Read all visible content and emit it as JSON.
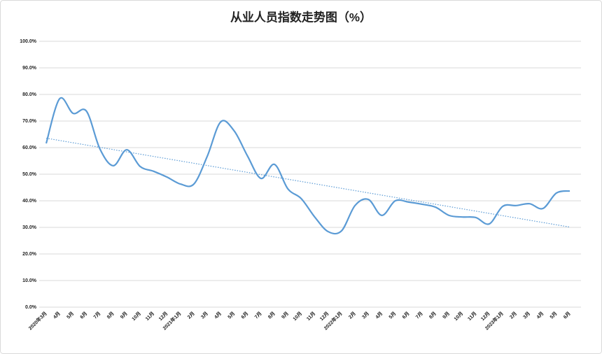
{
  "chart_data": {
    "type": "line",
    "title": "从业人员指数走势图（%）",
    "categories": [
      "2020年3月",
      "4月",
      "5月",
      "6月",
      "7月",
      "8月",
      "9月",
      "10月",
      "11月",
      "12月",
      "2021年1月",
      "2月",
      "3月",
      "4月",
      "5月",
      "6月",
      "7月",
      "8月",
      "9月",
      "10月",
      "11月",
      "12月",
      "2022年1月",
      "2月",
      "3月",
      "4月",
      "5月",
      "6月",
      "7月",
      "8月",
      "9月",
      "10月",
      "11月",
      "12月",
      "2023年1月",
      "2月",
      "3月",
      "4月",
      "5月",
      "6月"
    ],
    "series": [
      {
        "name": "从业人员指数",
        "color": "#5b9bd5",
        "values": [
          61.6,
          78.4,
          72.9,
          73.7,
          59.5,
          53.2,
          59.2,
          52.9,
          51.1,
          48.9,
          46.3,
          46.3,
          56.8,
          69.7,
          66.3,
          56.8,
          48.4,
          53.7,
          44.5,
          40.8,
          33.9,
          28.4,
          28.7,
          38.2,
          40.5,
          34.5,
          40.0,
          39.5,
          38.7,
          37.6,
          34.5,
          33.9,
          33.7,
          31.3,
          37.9,
          38.2,
          38.9,
          37.1,
          42.9,
          43.7
        ]
      }
    ],
    "trendline": true,
    "ylim": [
      0,
      100
    ],
    "yticks": [
      {
        "value": 0,
        "label": "0.0%"
      },
      {
        "value": 10,
        "label": "10.0%"
      },
      {
        "value": 20,
        "label": "20.0%"
      },
      {
        "value": 30,
        "label": "30.0%"
      },
      {
        "value": 40,
        "label": "40.0%"
      },
      {
        "value": 50,
        "label": "50.0%"
      },
      {
        "value": 60,
        "label": "60.0%"
      },
      {
        "value": 70,
        "label": "70.0%"
      },
      {
        "value": 80,
        "label": "80.0%"
      },
      {
        "value": 90,
        "label": "90.0%"
      },
      {
        "value": 100,
        "label": "100.0%"
      }
    ],
    "grid": true
  }
}
